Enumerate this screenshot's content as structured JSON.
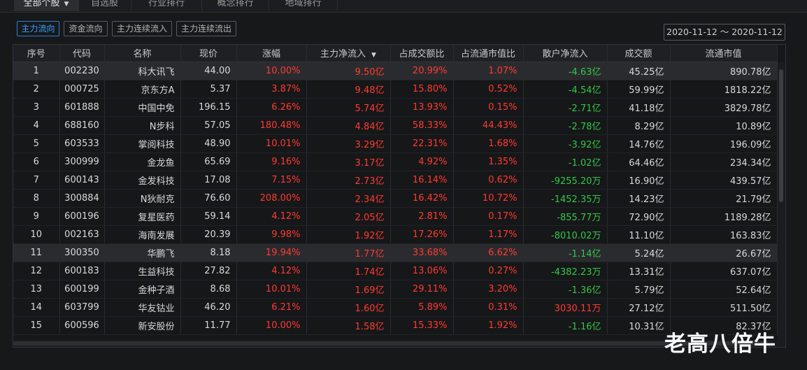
{
  "tabs": [
    {
      "label": "全部个股",
      "active": true
    },
    {
      "label": "自选股",
      "active": false
    },
    {
      "label": "行业排行",
      "active": false
    },
    {
      "label": "概念排行",
      "active": false
    },
    {
      "label": "地域排行",
      "active": false
    }
  ],
  "filter_buttons": [
    {
      "label": "主力流向",
      "active": true
    },
    {
      "label": "资金流向",
      "active": false
    },
    {
      "label": "主力连续流入",
      "active": false
    },
    {
      "label": "主力连续流出",
      "active": false
    }
  ],
  "date_range": "2020-11-12 ～ 2020-11-12",
  "table": {
    "headers": [
      "序号",
      "代码",
      "名称",
      "现价",
      "涨幅",
      "主力净流入",
      "占成交额比",
      "占流通市值比",
      "散户净流入",
      "成交额",
      "流通市值"
    ],
    "sort_column": "主力净流入",
    "rows": [
      {
        "idx": "1",
        "code": "002230",
        "name": "科大讯飞",
        "price": "44.00",
        "change": "10.00%",
        "main": "9.50亿",
        "turn": "20.99%",
        "cap": "1.07%",
        "retail": "-4.63亿",
        "vol": "45.25亿",
        "mcap": "890.78亿"
      },
      {
        "idx": "2",
        "code": "000725",
        "name": "京东方A",
        "price": "5.37",
        "change": "3.87%",
        "main": "9.48亿",
        "turn": "15.80%",
        "cap": "0.52%",
        "retail": "-4.54亿",
        "vol": "59.99亿",
        "mcap": "1818.22亿"
      },
      {
        "idx": "3",
        "code": "601888",
        "name": "中国中免",
        "price": "196.15",
        "change": "6.26%",
        "main": "5.74亿",
        "turn": "13.93%",
        "cap": "0.15%",
        "retail": "-2.71亿",
        "vol": "41.18亿",
        "mcap": "3829.78亿"
      },
      {
        "idx": "4",
        "code": "688160",
        "name": "N步科",
        "price": "57.05",
        "change": "180.48%",
        "main": "4.84亿",
        "turn": "58.33%",
        "cap": "44.43%",
        "retail": "-2.78亿",
        "vol": "8.29亿",
        "mcap": "10.89亿"
      },
      {
        "idx": "5",
        "code": "603533",
        "name": "掌阅科技",
        "price": "48.90",
        "change": "10.01%",
        "main": "3.29亿",
        "turn": "22.31%",
        "cap": "1.68%",
        "retail": "-3.92亿",
        "vol": "14.76亿",
        "mcap": "196.09亿"
      },
      {
        "idx": "6",
        "code": "300999",
        "name": "金龙鱼",
        "price": "65.69",
        "change": "9.16%",
        "main": "3.17亿",
        "turn": "4.92%",
        "cap": "1.35%",
        "retail": "-1.02亿",
        "vol": "64.46亿",
        "mcap": "234.34亿"
      },
      {
        "idx": "7",
        "code": "600143",
        "name": "金发科技",
        "price": "17.08",
        "change": "7.15%",
        "main": "2.73亿",
        "turn": "16.14%",
        "cap": "0.62%",
        "retail": "-9255.20万",
        "vol": "16.90亿",
        "mcap": "439.57亿"
      },
      {
        "idx": "8",
        "code": "300884",
        "name": "N狄耐克",
        "price": "76.60",
        "change": "208.00%",
        "main": "2.34亿",
        "turn": "16.42%",
        "cap": "10.72%",
        "retail": "-1452.35万",
        "vol": "14.23亿",
        "mcap": "21.79亿"
      },
      {
        "idx": "9",
        "code": "600196",
        "name": "复星医药",
        "price": "59.14",
        "change": "4.12%",
        "main": "2.05亿",
        "turn": "2.81%",
        "cap": "0.17%",
        "retail": "-855.77万",
        "vol": "72.90亿",
        "mcap": "1189.28亿"
      },
      {
        "idx": "10",
        "code": "002163",
        "name": "海南发展",
        "price": "20.39",
        "change": "9.98%",
        "main": "1.92亿",
        "turn": "17.26%",
        "cap": "1.17%",
        "retail": "-8010.02万",
        "vol": "11.10亿",
        "mcap": "163.83亿"
      },
      {
        "idx": "11",
        "code": "300350",
        "name": "华鹏飞",
        "price": "8.18",
        "change": "19.94%",
        "main": "1.77亿",
        "turn": "33.68%",
        "cap": "6.62%",
        "retail": "-1.14亿",
        "vol": "5.24亿",
        "mcap": "26.67亿"
      },
      {
        "idx": "12",
        "code": "600183",
        "name": "生益科技",
        "price": "27.82",
        "change": "4.12%",
        "main": "1.74亿",
        "turn": "13.06%",
        "cap": "0.27%",
        "retail": "-4382.23万",
        "vol": "13.31亿",
        "mcap": "637.07亿"
      },
      {
        "idx": "13",
        "code": "600199",
        "name": "金种子酒",
        "price": "8.68",
        "change": "10.01%",
        "main": "1.69亿",
        "turn": "29.11%",
        "cap": "3.20%",
        "retail": "-1.36亿",
        "vol": "5.79亿",
        "mcap": "52.64亿"
      },
      {
        "idx": "14",
        "code": "603799",
        "name": "华友钴业",
        "price": "46.20",
        "change": "6.21%",
        "main": "1.60亿",
        "turn": "5.89%",
        "cap": "0.31%",
        "retail": "3030.11万",
        "vol": "27.12亿",
        "mcap": "511.50亿"
      },
      {
        "idx": "15",
        "code": "600596",
        "name": "新安股份",
        "price": "11.77",
        "change": "10.00%",
        "main": "1.58亿",
        "turn": "15.33%",
        "cap": "1.92%",
        "retail": "-1.16亿",
        "vol": "10.31亿",
        "mcap": "82.37亿"
      }
    ]
  },
  "watermark": "老高八倍牛",
  "colors": {
    "up": "#ff3b30",
    "down": "#33c845",
    "accent": "#2b7fd4"
  }
}
